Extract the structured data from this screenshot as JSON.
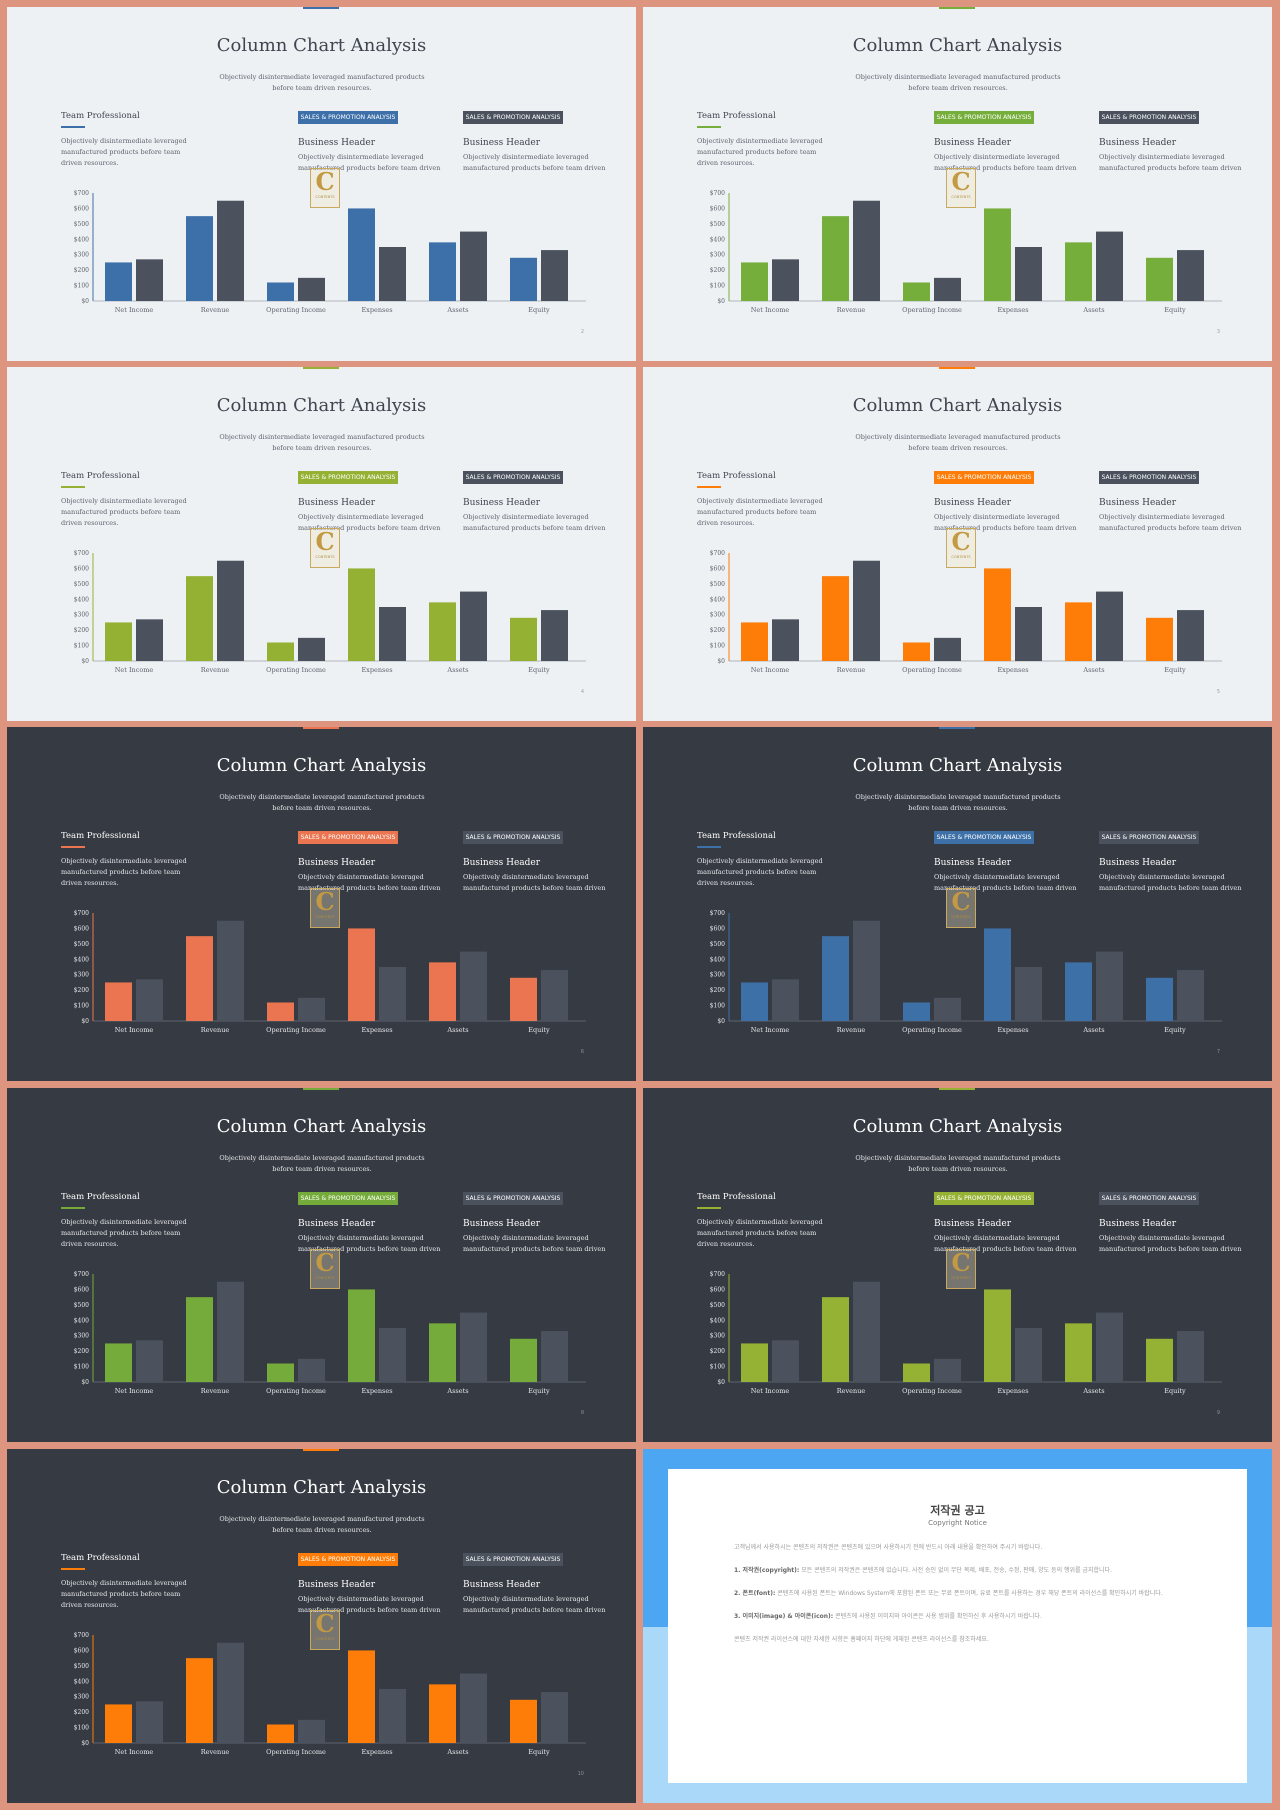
{
  "slide_template": {
    "title": "Column Chart Analysis",
    "subtitle": "Objectively disintermediate leveraged manufactured products before team driven resources.",
    "team_heading": "Team Professional",
    "team_text": "Objectively disintermediate leveraged manufactured products before team driven resources.",
    "tag_label": "SALES & PROMOTION ANALYSIS",
    "business_header": "Business Header",
    "business_text": "Objectively disintermediate leveraged manufactured products before team driven",
    "watermark_letter": "C",
    "watermark_text": "CONTENTS"
  },
  "chart_data": {
    "type": "bar",
    "categories": [
      "Net Income",
      "Revenue",
      "Operating Income",
      "Expenses",
      "Assets",
      "Equity"
    ],
    "series": [
      {
        "values": [
          250,
          550,
          120,
          600,
          380,
          280
        ]
      },
      {
        "values": [
          270,
          650,
          150,
          350,
          450,
          330
        ]
      }
    ],
    "yticks": [
      "$0",
      "$100",
      "$200",
      "$300",
      "$400",
      "$500",
      "$600",
      "$700"
    ],
    "ylim": [
      0,
      700
    ],
    "grid": false,
    "legend": "none"
  },
  "slides": [
    {
      "theme": "light",
      "accent": "#3d6fa8",
      "page": "2"
    },
    {
      "theme": "light",
      "accent": "#76ae3b",
      "page": "3"
    },
    {
      "theme": "light",
      "accent": "#95b134",
      "page": "4"
    },
    {
      "theme": "light",
      "accent": "#fd7d08",
      "page": "5"
    },
    {
      "theme": "dark",
      "accent": "#ea7550",
      "page": "6"
    },
    {
      "theme": "dark",
      "accent": "#3e70a8",
      "page": "7"
    },
    {
      "theme": "dark",
      "accent": "#75ab3a",
      "page": "8"
    },
    {
      "theme": "dark",
      "accent": "#96b234",
      "page": "9"
    },
    {
      "theme": "dark",
      "accent": "#fd7d08",
      "page": "10"
    }
  ],
  "notice": {
    "title": "저작권 공고",
    "subtitle": "Copyright Notice",
    "intro": "고객님께서 사용하시는 콘텐츠의 저작권은 콘텐츠에 있으며 사용하시기 전에 반드시 아래 내용을 확인하여 주시기 바랍니다.",
    "item1_label": "1. 저작권(copyright):",
    "item1_text": "모든 콘텐츠의 저작권은 콘텐츠에 있습니다. 사전 승인 없이 무단 복제, 배포, 전송, 수정, 판매, 양도 등의 행위를 금지합니다.",
    "item2_label": "2. 폰트(font):",
    "item2_text": "콘텐츠에 사용된 폰트는 Windows System에 포함된 폰트 또는 무료 폰트이며, 유료 폰트를 사용하는 경우 해당 폰트의 라이선스를 확인하시기 바랍니다.",
    "item3_label": "3. 이미지(image) & 아이콘(icon):",
    "item3_text": "콘텐츠에 사용된 이미지와 아이콘은 사용 범위를 확인하신 후 사용하시기 바랍니다.",
    "footer": "콘텐츠 저작권 라이선스에 대한 자세한 사항은 홈페이지 하단에 게재된 콘텐츠 라이선스를 참조하세요."
  }
}
